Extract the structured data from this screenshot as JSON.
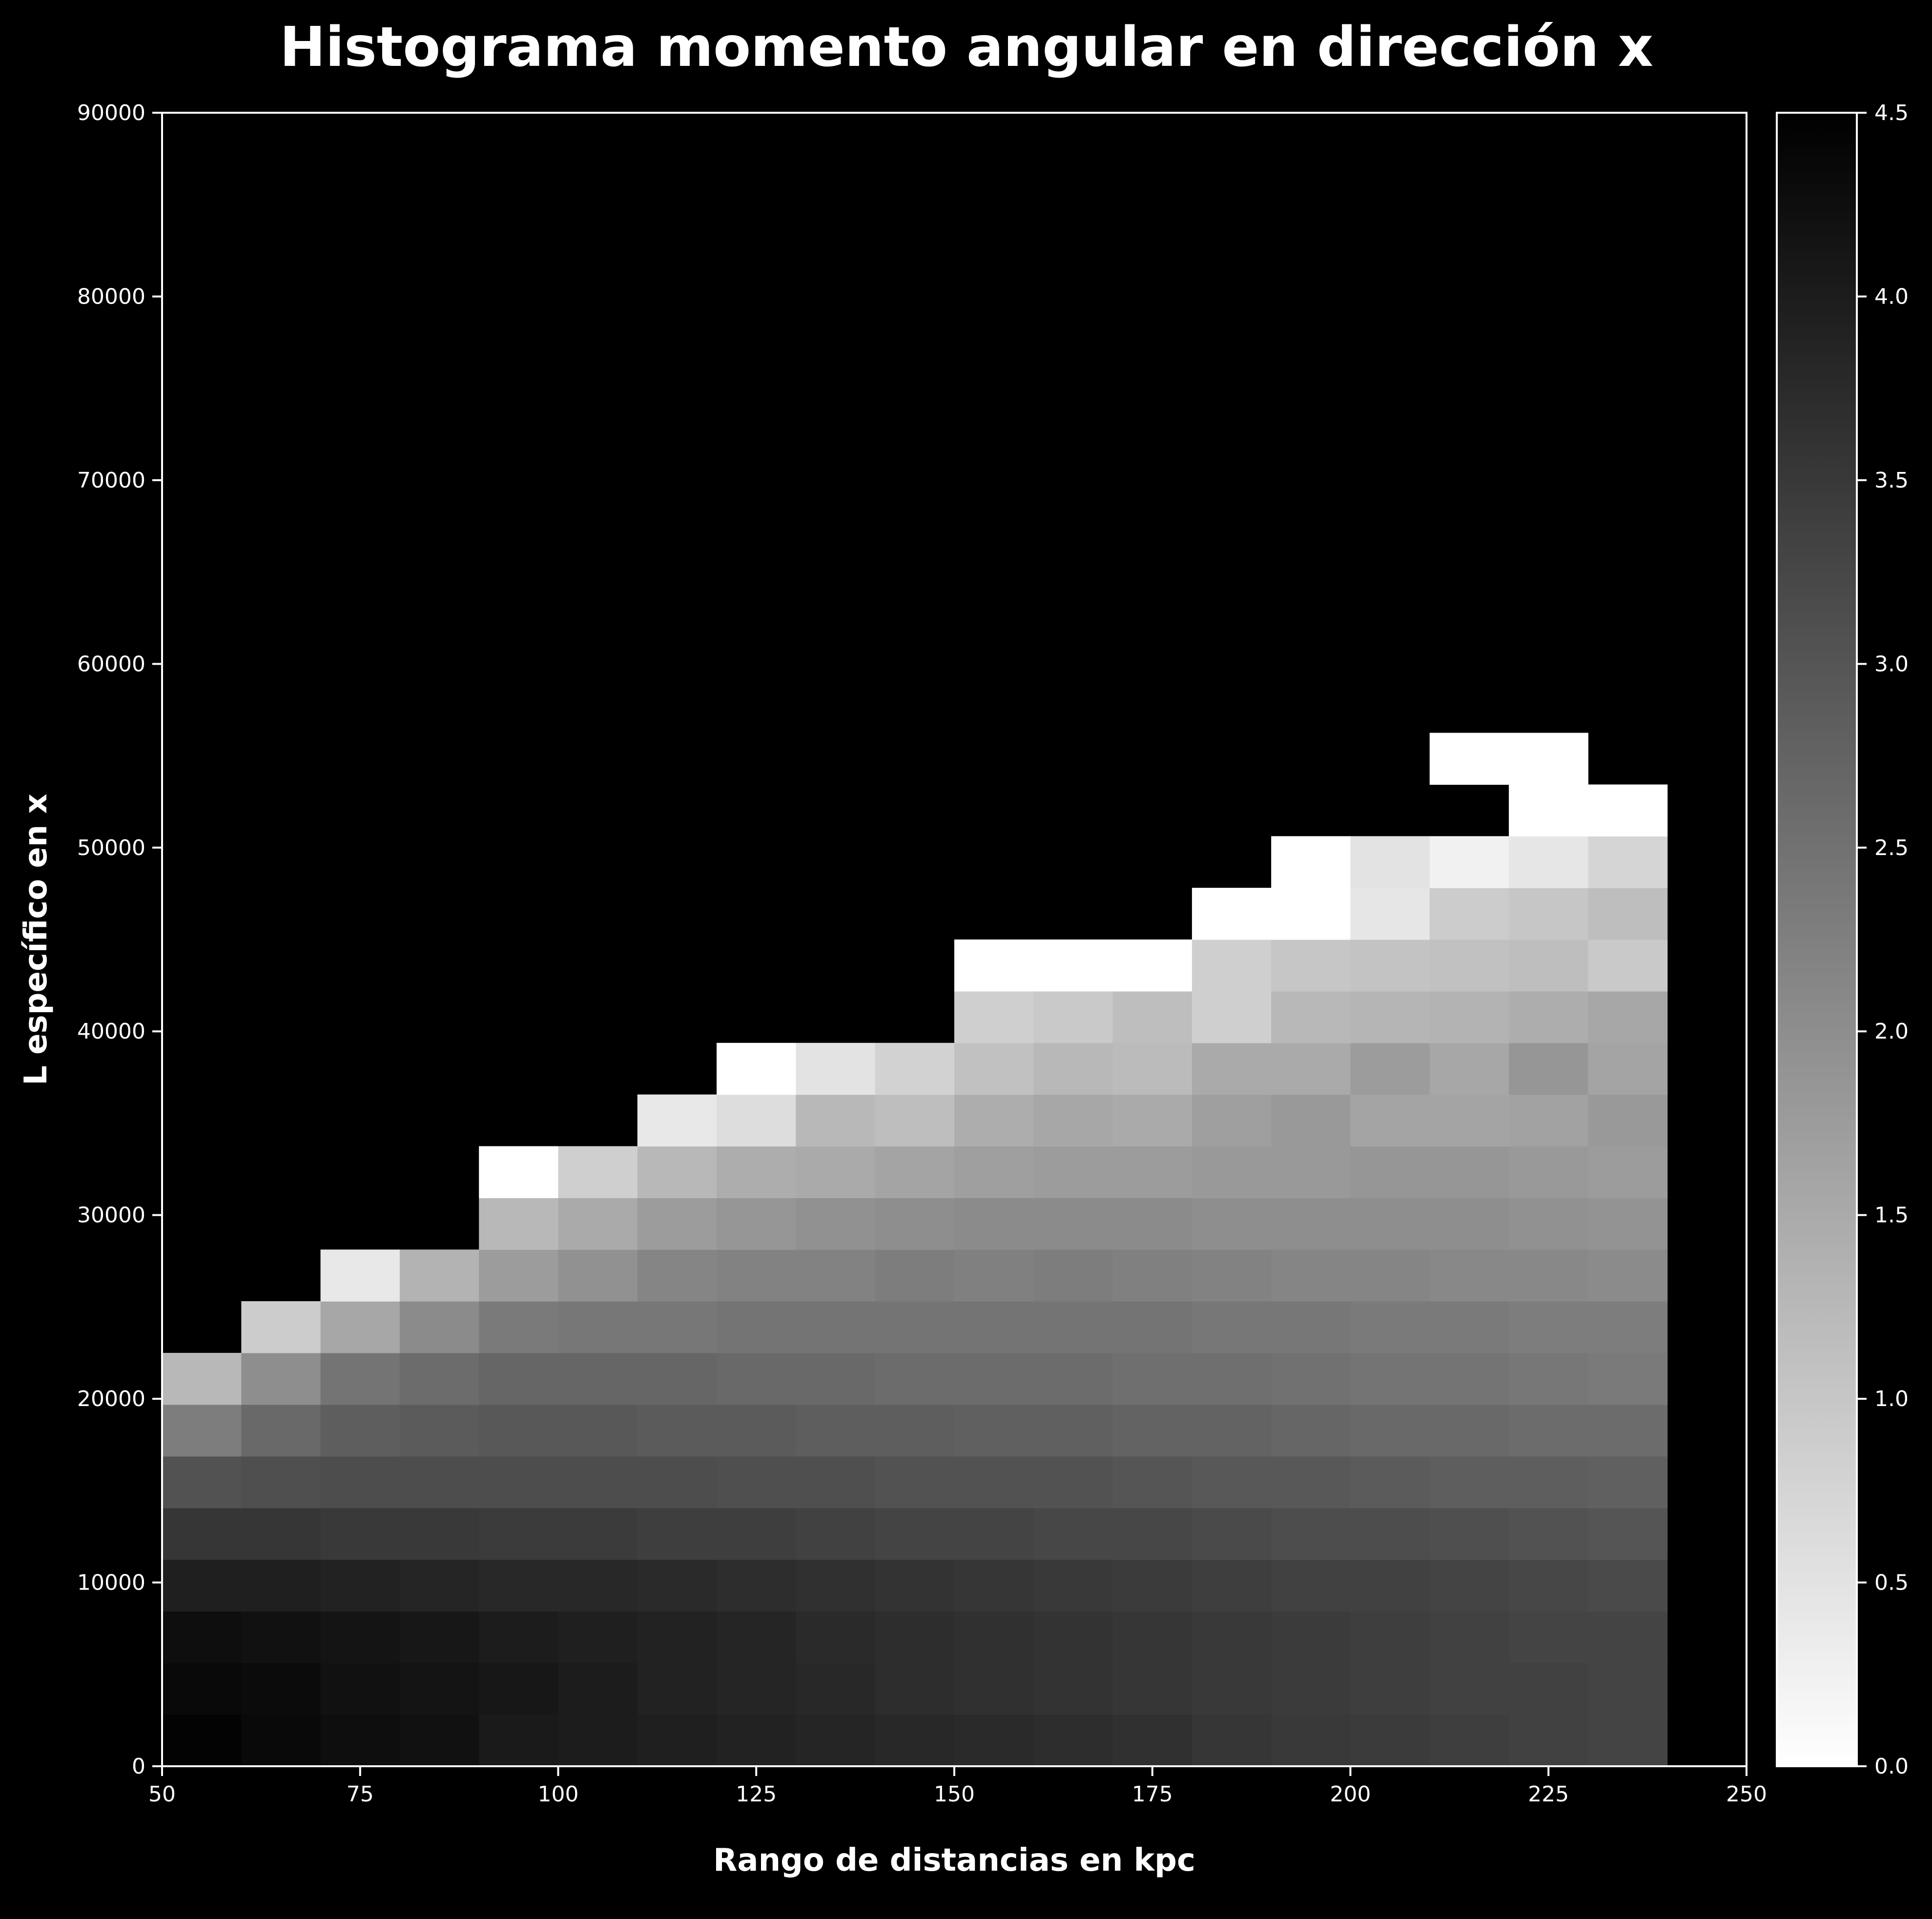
{
  "chart_data": {
    "type": "heatmap",
    "title": "Histograma momento angular en dirección x",
    "xlabel": "Rango de distancias en kpc",
    "ylabel": "L específico en x",
    "xlim": [
      50,
      250
    ],
    "ylim": [
      0,
      90000
    ],
    "x_ticks": [
      "50",
      "75",
      "100",
      "125",
      "150",
      "175",
      "200",
      "225",
      "250"
    ],
    "y_ticks": [
      "0",
      "10000",
      "20000",
      "30000",
      "40000",
      "50000",
      "60000",
      "70000",
      "80000",
      "90000"
    ],
    "colorbar": {
      "range": [
        0.0,
        4.5
      ],
      "ticks": [
        "0.0",
        "0.5",
        "1.0",
        "1.5",
        "2.0",
        "2.5",
        "3.0",
        "3.5",
        "4.0",
        "4.5"
      ],
      "colormap": "inverted gray (0 = white, 4.5 = black)"
    },
    "x_bins": [
      50,
      60,
      70,
      80,
      90,
      100,
      110,
      120,
      130,
      140,
      150,
      160,
      170,
      180,
      190,
      200,
      210,
      220,
      230,
      240
    ],
    "y_bin_width": 2812.5,
    "rows_from_bottom": [
      [
        4.45,
        4.35,
        4.25,
        4.2,
        4.05,
        4.0,
        3.95,
        3.9,
        3.85,
        3.8,
        3.75,
        3.7,
        3.65,
        3.55,
        3.5,
        3.45,
        3.4,
        3.35,
        3.3
      ],
      [
        4.35,
        4.3,
        4.2,
        4.15,
        4.1,
        4.0,
        3.9,
        3.85,
        3.8,
        3.7,
        3.65,
        3.6,
        3.55,
        3.5,
        3.45,
        3.4,
        3.35,
        3.35,
        3.3
      ],
      [
        4.25,
        4.2,
        4.15,
        4.1,
        4.0,
        3.95,
        3.9,
        3.85,
        3.75,
        3.7,
        3.65,
        3.6,
        3.55,
        3.5,
        3.45,
        3.4,
        3.35,
        3.3,
        3.3
      ],
      [
        3.95,
        3.95,
        3.9,
        3.85,
        3.8,
        3.8,
        3.75,
        3.7,
        3.65,
        3.6,
        3.55,
        3.5,
        3.45,
        3.4,
        3.35,
        3.35,
        3.3,
        3.25,
        3.2
      ],
      [
        3.55,
        3.55,
        3.5,
        3.5,
        3.45,
        3.45,
        3.4,
        3.4,
        3.35,
        3.3,
        3.3,
        3.25,
        3.25,
        3.2,
        3.15,
        3.15,
        3.1,
        3.05,
        3.0
      ],
      [
        3.05,
        3.1,
        3.15,
        3.15,
        3.15,
        3.15,
        3.15,
        3.1,
        3.1,
        3.05,
        3.05,
        3.05,
        3.0,
        2.95,
        2.95,
        2.9,
        2.85,
        2.85,
        2.8
      ],
      [
        2.3,
        2.65,
        2.85,
        2.9,
        2.95,
        2.95,
        2.9,
        2.9,
        2.85,
        2.85,
        2.8,
        2.8,
        2.75,
        2.75,
        2.7,
        2.65,
        2.65,
        2.6,
        2.6
      ],
      [
        1.25,
        2.0,
        2.45,
        2.6,
        2.7,
        2.7,
        2.7,
        2.65,
        2.65,
        2.6,
        2.6,
        2.6,
        2.55,
        2.55,
        2.5,
        2.45,
        2.45,
        2.4,
        2.35
      ],
      [
        null,
        0.9,
        1.55,
        2.05,
        2.35,
        2.4,
        2.4,
        2.45,
        2.45,
        2.45,
        2.45,
        2.45,
        2.45,
        2.4,
        2.4,
        2.35,
        2.35,
        2.3,
        2.3
      ],
      [
        null,
        null,
        0.4,
        1.35,
        1.75,
        1.95,
        2.15,
        2.2,
        2.2,
        2.3,
        2.25,
        2.3,
        2.25,
        2.2,
        2.15,
        2.15,
        2.1,
        2.1,
        2.05
      ],
      [
        null,
        null,
        null,
        null,
        1.25,
        1.5,
        1.75,
        1.85,
        1.95,
        2.0,
        2.05,
        2.05,
        2.05,
        2.0,
        2.0,
        2.0,
        2.0,
        1.95,
        1.9
      ],
      [
        null,
        null,
        null,
        null,
        0.0,
        0.85,
        1.25,
        1.45,
        1.5,
        1.6,
        1.7,
        1.75,
        1.75,
        1.8,
        1.8,
        1.85,
        1.85,
        1.8,
        1.75
      ],
      [
        null,
        null,
        null,
        null,
        null,
        null,
        0.4,
        0.6,
        1.25,
        1.15,
        1.45,
        1.55,
        1.5,
        1.7,
        1.8,
        1.6,
        1.6,
        1.65,
        1.8
      ],
      [
        null,
        null,
        null,
        null,
        null,
        null,
        null,
        0.0,
        0.5,
        0.8,
        1.1,
        1.25,
        1.2,
        1.5,
        1.5,
        1.75,
        1.55,
        1.85,
        1.6
      ],
      [
        null,
        null,
        null,
        null,
        null,
        null,
        null,
        null,
        null,
        null,
        0.85,
        0.95,
        1.15,
        0.85,
        1.25,
        1.3,
        1.35,
        1.45,
        1.55
      ],
      [
        null,
        null,
        null,
        null,
        null,
        null,
        null,
        null,
        null,
        null,
        0.0,
        0.0,
        0.0,
        0.85,
        1.0,
        1.05,
        1.1,
        1.15,
        0.95
      ],
      [
        null,
        null,
        null,
        null,
        null,
        null,
        null,
        null,
        null,
        null,
        null,
        null,
        null,
        0.0,
        0.0,
        0.45,
        0.9,
        1.0,
        1.15
      ],
      [
        null,
        null,
        null,
        null,
        null,
        null,
        null,
        null,
        null,
        null,
        null,
        null,
        null,
        null,
        0.0,
        0.5,
        0.25,
        0.45,
        0.75
      ],
      [
        null,
        null,
        null,
        null,
        null,
        null,
        null,
        null,
        null,
        null,
        null,
        null,
        null,
        null,
        null,
        null,
        null,
        0.0,
        0.0
      ],
      [
        null,
        null,
        null,
        null,
        null,
        null,
        null,
        null,
        null,
        null,
        null,
        null,
        null,
        null,
        null,
        null,
        0.0,
        0.0,
        null
      ]
    ]
  }
}
